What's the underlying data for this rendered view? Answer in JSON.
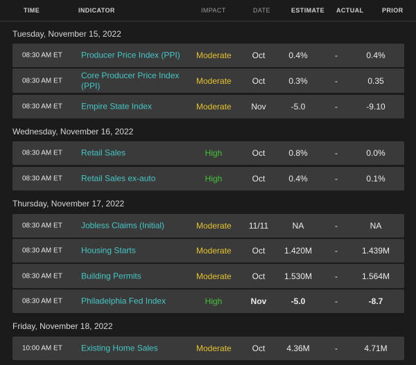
{
  "columns": {
    "time": "TIME",
    "indicator": "INDICATOR",
    "impact": "IMPACT",
    "date": "DATE",
    "estimate": "ESTIMATE",
    "actual": "ACTUAL",
    "prior": "PRIOR"
  },
  "groups": [
    {
      "date_label": "Tuesday, November 15, 2022",
      "rows": [
        {
          "time": "08:30 AM ET",
          "indicator": "Producer Price Index (PPI)",
          "impact": "Moderate",
          "date": "Oct",
          "estimate": "0.4%",
          "actual": "-",
          "prior": "0.4%"
        },
        {
          "time": "08:30 AM ET",
          "indicator": "Core Producer Price Index (PPI)",
          "impact": "Moderate",
          "date": "Oct",
          "estimate": "0.3%",
          "actual": "-",
          "prior": "0.35"
        },
        {
          "time": "08:30 AM ET",
          "indicator": "Empire State Index",
          "impact": "Moderate",
          "date": "Nov",
          "estimate": "-5.0",
          "actual": "-",
          "prior": "-9.10"
        }
      ]
    },
    {
      "date_label": "Wednesday, November 16, 2022",
      "rows": [
        {
          "time": "08:30 AM ET",
          "indicator": "Retail Sales",
          "impact": "High",
          "date": "Oct",
          "estimate": "0.8%",
          "actual": "-",
          "prior": "0.0%"
        },
        {
          "time": "08:30 AM ET",
          "indicator": "Retail Sales ex-auto",
          "impact": "High",
          "date": "Oct",
          "estimate": "0.4%",
          "actual": "-",
          "prior": "0.1%"
        }
      ]
    },
    {
      "date_label": "Thursday, November 17, 2022",
      "rows": [
        {
          "time": "08:30 AM ET",
          "indicator": "Jobless Claims (Initial)",
          "impact": "Moderate",
          "date": "11/11",
          "estimate": "NA",
          "actual": "-",
          "prior": "NA"
        },
        {
          "time": "08:30 AM ET",
          "indicator": "Housing Starts",
          "impact": "Moderate",
          "date": "Oct",
          "estimate": "1.420M",
          "actual": "-",
          "prior": "1.439M"
        },
        {
          "time": "08:30 AM ET",
          "indicator": "Building Permits",
          "impact": "Moderate",
          "date": "Oct",
          "estimate": "1.530M",
          "actual": "-",
          "prior": "1.564M"
        },
        {
          "time": "08:30 AM ET",
          "indicator": "Philadelphia Fed Index",
          "impact": "High",
          "date": "Nov",
          "estimate": "-5.0",
          "actual": "-",
          "prior": "-8.7"
        }
      ]
    },
    {
      "date_label": "Friday, November 18, 2022",
      "rows": [
        {
          "time": "10:00 AM ET",
          "indicator": "Existing Home Sales",
          "impact": "Moderate",
          "date": "Oct",
          "estimate": "4.36M",
          "actual": "-",
          "prior": "4.71M"
        }
      ]
    }
  ],
  "colors": {
    "indicator": "#48c6c6",
    "impact_moderate": "#e5c233",
    "impact_high": "#46c23c"
  }
}
